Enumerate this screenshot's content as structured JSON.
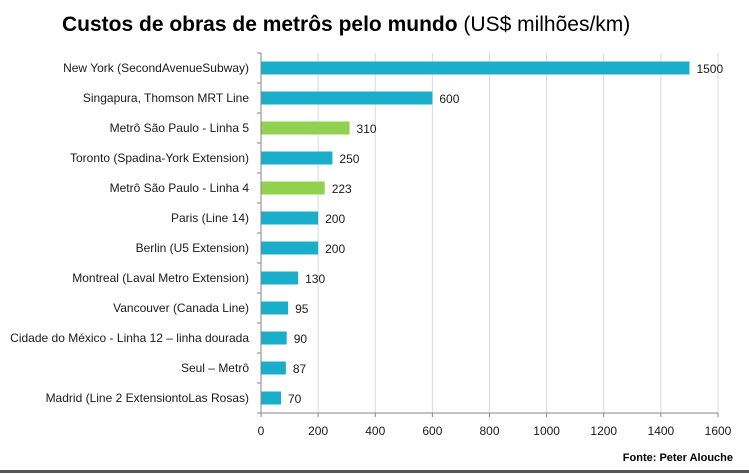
{
  "title": {
    "main": "Custos de obras de metrôs pelo mundo",
    "unit": "(US$ milhões/km)"
  },
  "source": "Fonte: Peter Alouche",
  "colors": {
    "primary": "#1aaecb",
    "highlight": "#92d050",
    "grid": "#d9d9d9",
    "axis": "#868686"
  },
  "chart_data": {
    "type": "bar",
    "orientation": "horizontal",
    "categories": [
      "New York (SecondAvenueSubway)",
      "Singapura, Thomson MRT Line",
      "Metrô São Paulo - Linha 5",
      "Toronto (Spadina-York Extension)",
      "Metrô São Paulo - Linha 4",
      "Paris (Line 14)",
      "Berlin (U5 Extension)",
      "Montreal (Laval Metro Extension)",
      "Vancouver (Canada Line)",
      "Cidade do México - Linha 12 – linha dourada",
      "Seul – Metrô",
      "Madrid (Line 2 ExtensiontoLas Rosas)"
    ],
    "values": [
      1500,
      600,
      310,
      250,
      223,
      200,
      200,
      130,
      95,
      90,
      87,
      70
    ],
    "highlighted": [
      false,
      false,
      true,
      false,
      true,
      false,
      false,
      false,
      false,
      false,
      false,
      false
    ],
    "xlim": [
      0,
      1600
    ],
    "xticks": [
      0,
      200,
      400,
      600,
      800,
      1000,
      1200,
      1400,
      1600
    ],
    "grid": true,
    "data_labels": true,
    "legend": "none"
  }
}
